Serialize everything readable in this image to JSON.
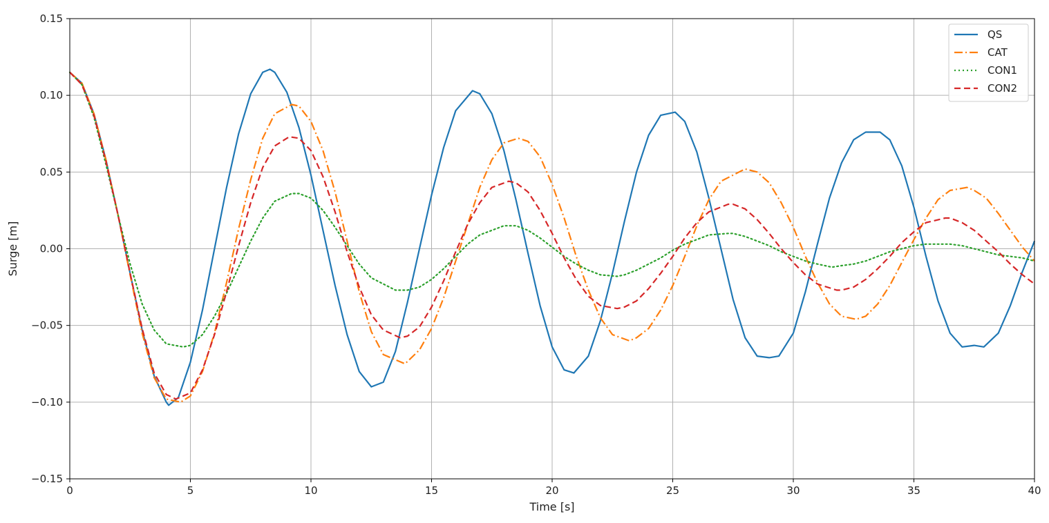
{
  "chart_data": {
    "type": "line",
    "title": "",
    "xlabel": "Time [s]",
    "ylabel": "Surge [m]",
    "xlim": [
      0,
      40
    ],
    "ylim": [
      -0.15,
      0.15
    ],
    "xticks": [
      0,
      5,
      10,
      15,
      20,
      25,
      30,
      35,
      40
    ],
    "xtick_labels": [
      "0",
      "5",
      "10",
      "15",
      "20",
      "25",
      "30",
      "35",
      "40"
    ],
    "yticks": [
      -0.15,
      -0.1,
      -0.05,
      0.0,
      0.05,
      0.1,
      0.15
    ],
    "ytick_labels": [
      "−0.15",
      "−0.10",
      "−0.05",
      "0.00",
      "0.05",
      "0.10",
      "0.15"
    ],
    "grid": true,
    "legend_position": "top-right",
    "series": [
      {
        "name": "QS",
        "color": "#1f77b4",
        "dash": "solid",
        "x": [
          0,
          0.5,
          1,
          1.5,
          2,
          2.5,
          3,
          3.5,
          4,
          4.1,
          4.5,
          5,
          5.5,
          6,
          6.5,
          7,
          7.5,
          8,
          8.3,
          8.5,
          9,
          9.5,
          10,
          10.5,
          11,
          11.5,
          12,
          12.5,
          13,
          13.5,
          14,
          14.5,
          15,
          15.5,
          16,
          16.7,
          17,
          17.5,
          18,
          18.5,
          19,
          19.5,
          20,
          20.5,
          20.9,
          21.5,
          22,
          22.5,
          23,
          23.5,
          24,
          24.5,
          25.1,
          25.5,
          26,
          26.5,
          27,
          27.5,
          28,
          28.5,
          29,
          29.4,
          30,
          30.5,
          31,
          31.5,
          32,
          32.5,
          33,
          33.6,
          34,
          34.5,
          35,
          35.5,
          36,
          36.5,
          37,
          37.5,
          37.9,
          38.5,
          39,
          39.5,
          40
        ],
        "y": [
          0.115,
          0.108,
          0.088,
          0.058,
          0.022,
          -0.016,
          -0.053,
          -0.083,
          -0.1,
          -0.102,
          -0.097,
          -0.074,
          -0.04,
          0.0,
          0.04,
          0.075,
          0.101,
          0.115,
          0.117,
          0.115,
          0.102,
          0.079,
          0.048,
          0.012,
          -0.024,
          -0.056,
          -0.08,
          -0.09,
          -0.087,
          -0.067,
          -0.035,
          0.0,
          0.035,
          0.066,
          0.09,
          0.103,
          0.101,
          0.088,
          0.064,
          0.032,
          -0.003,
          -0.037,
          -0.064,
          -0.079,
          -0.081,
          -0.07,
          -0.047,
          -0.016,
          0.018,
          0.05,
          0.074,
          0.087,
          0.089,
          0.083,
          0.063,
          0.033,
          0.0,
          -0.033,
          -0.058,
          -0.07,
          -0.071,
          -0.07,
          -0.055,
          -0.028,
          0.003,
          0.033,
          0.056,
          0.071,
          0.076,
          0.076,
          0.071,
          0.054,
          0.027,
          -0.005,
          -0.034,
          -0.055,
          -0.064,
          -0.063,
          -0.064,
          -0.055,
          -0.037,
          -0.015,
          0.005
        ]
      },
      {
        "name": "CAT",
        "color": "#ff7f0e",
        "dash": "dashdot",
        "x": [
          0,
          0.5,
          1,
          1.5,
          2,
          2.5,
          3,
          3.5,
          4,
          4.6,
          5,
          5.5,
          6,
          6.5,
          7,
          7.5,
          8,
          8.5,
          9.2,
          9.5,
          10,
          10.5,
          11,
          11.5,
          12,
          12.5,
          13,
          13.9,
          14.5,
          15,
          15.5,
          16,
          16.5,
          17,
          17.5,
          18,
          18.6,
          19,
          19.5,
          20,
          20.5,
          21,
          21.5,
          22,
          22.5,
          23.2,
          23.5,
          24,
          24.5,
          25,
          25.5,
          26,
          26.5,
          27,
          28,
          28.5,
          29,
          29.5,
          30,
          30.5,
          31,
          31.5,
          32,
          32.6,
          33,
          33.5,
          34,
          34.5,
          35,
          35.5,
          36,
          36.5,
          37.2,
          37.5,
          38,
          38.5,
          39,
          39.5,
          40
        ],
        "y": [
          0.115,
          0.108,
          0.088,
          0.058,
          0.022,
          -0.017,
          -0.055,
          -0.084,
          -0.098,
          -0.1,
          -0.096,
          -0.08,
          -0.055,
          -0.022,
          0.013,
          0.045,
          0.072,
          0.088,
          0.094,
          0.093,
          0.083,
          0.064,
          0.037,
          0.005,
          -0.028,
          -0.054,
          -0.069,
          -0.075,
          -0.066,
          -0.052,
          -0.032,
          -0.008,
          0.016,
          0.04,
          0.058,
          0.069,
          0.072,
          0.07,
          0.06,
          0.042,
          0.02,
          -0.005,
          -0.027,
          -0.045,
          -0.056,
          -0.06,
          -0.058,
          -0.052,
          -0.04,
          -0.024,
          -0.005,
          0.015,
          0.032,
          0.044,
          0.052,
          0.05,
          0.043,
          0.03,
          0.014,
          -0.005,
          -0.022,
          -0.036,
          -0.044,
          -0.046,
          -0.044,
          -0.036,
          -0.024,
          -0.009,
          0.006,
          0.02,
          0.032,
          0.038,
          0.04,
          0.038,
          0.033,
          0.023,
          0.012,
          0.001,
          -0.008
        ]
      },
      {
        "name": "CON1",
        "color": "#2ca02c",
        "dash": "dotted",
        "x": [
          0,
          0.5,
          1,
          1.5,
          2,
          2.5,
          3,
          3.5,
          4,
          4.7,
          5,
          5.5,
          6,
          6.5,
          7,
          7.5,
          8,
          8.5,
          9.2,
          9.5,
          10,
          10.5,
          11,
          11.5,
          12,
          12.5,
          13.5,
          14,
          14.5,
          15,
          15.5,
          16,
          16.5,
          17,
          18,
          18.5,
          19,
          19.5,
          20,
          20.5,
          21,
          21.5,
          22,
          22.7,
          23,
          23.5,
          24,
          24.5,
          25,
          25.5,
          26,
          26.5,
          27.3,
          27.5,
          28,
          28.5,
          29,
          29.5,
          30,
          30.5,
          31,
          31.6,
          32,
          32.5,
          33,
          33.5,
          34,
          34.5,
          35,
          35.5,
          36,
          36.5,
          37,
          37.5,
          38,
          38.5,
          39,
          39.5,
          40
        ],
        "y": [
          0.115,
          0.107,
          0.086,
          0.055,
          0.022,
          -0.01,
          -0.036,
          -0.053,
          -0.062,
          -0.064,
          -0.063,
          -0.056,
          -0.044,
          -0.029,
          -0.012,
          0.005,
          0.02,
          0.031,
          0.036,
          0.036,
          0.033,
          0.025,
          0.014,
          0.002,
          -0.01,
          -0.019,
          -0.027,
          -0.027,
          -0.025,
          -0.02,
          -0.013,
          -0.005,
          0.003,
          0.009,
          0.015,
          0.015,
          0.012,
          0.007,
          0.001,
          -0.005,
          -0.01,
          -0.014,
          -0.017,
          -0.018,
          -0.017,
          -0.014,
          -0.01,
          -0.006,
          -0.001,
          0.003,
          0.006,
          0.009,
          0.01,
          0.01,
          0.008,
          0.005,
          0.002,
          -0.002,
          -0.005,
          -0.008,
          -0.01,
          -0.012,
          -0.011,
          -0.01,
          -0.008,
          -0.005,
          -0.002,
          0.0,
          0.002,
          0.003,
          0.003,
          0.003,
          0.002,
          0.0,
          -0.002,
          -0.004,
          -0.005,
          -0.006,
          -0.008
        ]
      },
      {
        "name": "CON2",
        "color": "#d62728",
        "dash": "dashed",
        "x": [
          0,
          0.5,
          1,
          1.5,
          2,
          2.5,
          3,
          3.5,
          4,
          4.4,
          5,
          5.5,
          6,
          6.5,
          7,
          7.5,
          8,
          8.5,
          9.1,
          9.5,
          10,
          10.5,
          11,
          11.5,
          12,
          12.5,
          13,
          13.7,
          14,
          14.5,
          15,
          15.5,
          16,
          16.5,
          17,
          17.5,
          18.2,
          18.5,
          19,
          19.5,
          20,
          20.5,
          21,
          21.5,
          22,
          22.7,
          23,
          23.5,
          24,
          24.5,
          25,
          25.5,
          26,
          26.5,
          27.3,
          27.5,
          28,
          28.5,
          29,
          29.5,
          30,
          30.5,
          31,
          31.8,
          32,
          32.5,
          33,
          33.5,
          34,
          34.5,
          35,
          35.5,
          36.3,
          36.5,
          37,
          37.5,
          38,
          38.5,
          39,
          39.5,
          40
        ],
        "y": [
          0.115,
          0.107,
          0.087,
          0.057,
          0.022,
          -0.016,
          -0.052,
          -0.081,
          -0.095,
          -0.098,
          -0.094,
          -0.079,
          -0.056,
          -0.028,
          0.002,
          0.03,
          0.053,
          0.067,
          0.073,
          0.072,
          0.064,
          0.047,
          0.024,
          -0.002,
          -0.025,
          -0.043,
          -0.053,
          -0.058,
          -0.057,
          -0.051,
          -0.038,
          -0.021,
          -0.002,
          0.016,
          0.03,
          0.04,
          0.044,
          0.043,
          0.037,
          0.025,
          0.01,
          -0.006,
          -0.02,
          -0.031,
          -0.037,
          -0.039,
          -0.038,
          -0.034,
          -0.026,
          -0.016,
          -0.005,
          0.007,
          0.017,
          0.024,
          0.029,
          0.029,
          0.026,
          0.019,
          0.01,
          0.0,
          -0.009,
          -0.017,
          -0.023,
          -0.027,
          -0.027,
          -0.025,
          -0.02,
          -0.013,
          -0.005,
          0.004,
          0.011,
          0.017,
          0.02,
          0.02,
          0.017,
          0.012,
          0.005,
          -0.002,
          -0.01,
          -0.017,
          -0.023
        ]
      }
    ]
  }
}
